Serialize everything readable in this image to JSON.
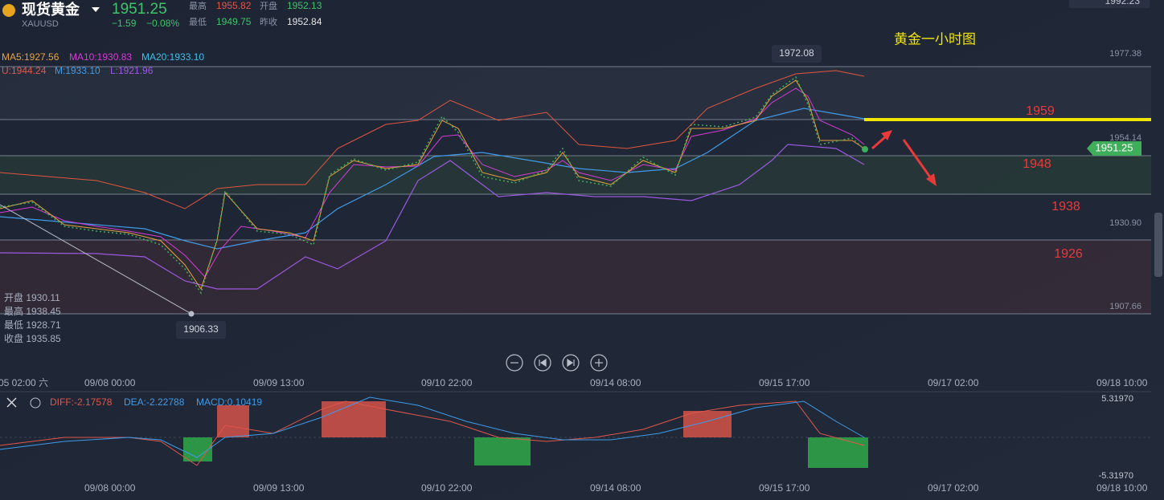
{
  "header": {
    "title": "现货黄金",
    "symbol": "XAUUSD",
    "price": "1951.25",
    "change": "−1.59",
    "change_pct": "−0.08%",
    "stats": [
      {
        "label": "最高",
        "value": "1955.82"
      },
      {
        "label": "开盘",
        "value": "1952.13"
      },
      {
        "label": "最低",
        "value": "1949.75"
      },
      {
        "label": "昨收",
        "value": "1952.84"
      }
    ],
    "top_right": "1992.23"
  },
  "indicators": {
    "ma": [
      "MA5:1927.56",
      "MA10:1930.83",
      "MA20:1933.10"
    ],
    "boll": [
      "U:1944.24",
      "M:1933.10",
      "L:1921.96"
    ]
  },
  "chart": {
    "title": "黄金一小时图",
    "high_label": "1972.08",
    "low_label": "1906.33",
    "current_tag": "1951.25",
    "levels": [
      "1959",
      "1948",
      "1938",
      "1926"
    ],
    "price_axis": [
      "1977.38",
      "1954.14",
      "1930.90",
      "1907.66"
    ],
    "ohlc": [
      "开盘 1930.11",
      "最高 1938.45",
      "最低 1928.71",
      "收盘 1935.85"
    ],
    "time_axis": [
      "05 02:00 六",
      "09/08 00:00",
      "09/09 13:00",
      "09/10 22:00",
      "09/14 08:00",
      "09/15 17:00",
      "09/17 02:00",
      "09/18 10:00"
    ]
  },
  "macd": {
    "labels": [
      "DIFF:-2.17578",
      "DEA:-2.22788",
      "MACD:0.10419"
    ],
    "axis": [
      "5.31970",
      "-5.31970"
    ],
    "time_axis": [
      "09/08 00:00",
      "09/09 13:00",
      "09/10 22:00",
      "09/14 08:00",
      "09/15 17:00",
      "09/17 02:00",
      "09/18 10:00"
    ]
  }
}
